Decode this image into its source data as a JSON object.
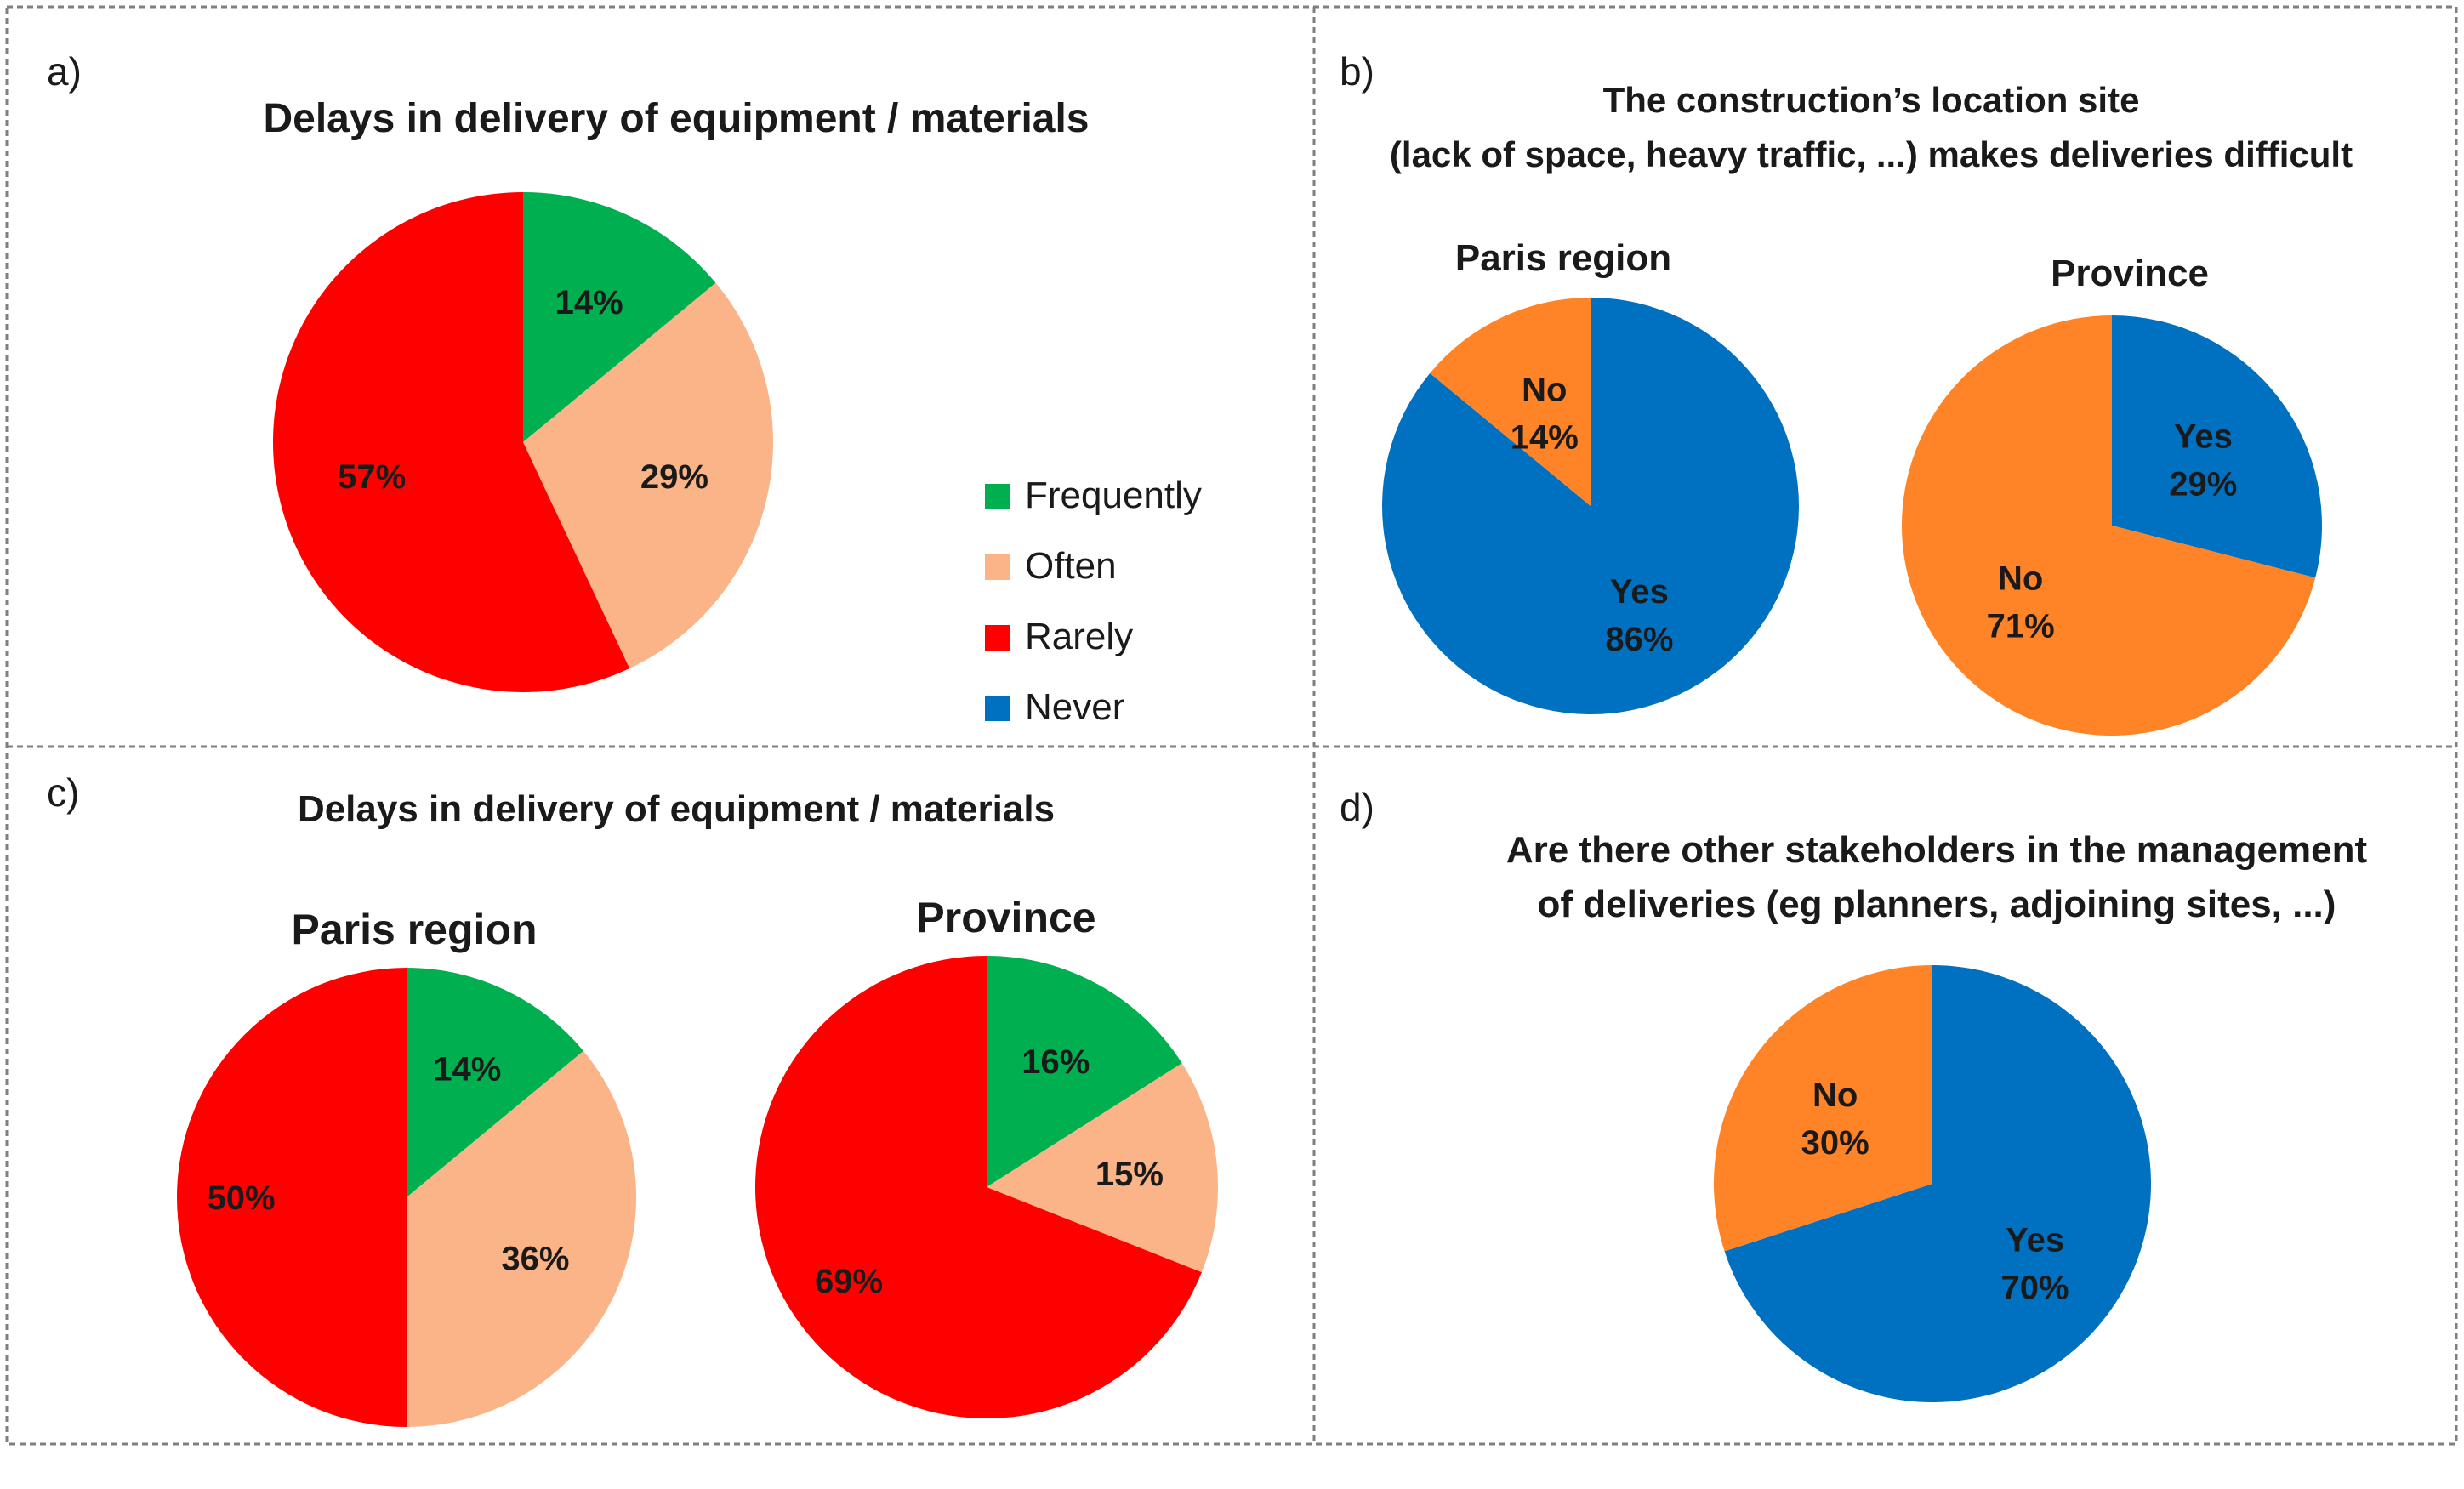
{
  "colors": {
    "frequently": "#00B050",
    "often": "#FAB488",
    "rarely": "#FF0000",
    "never": "#0070C0",
    "yes": "#0070C0",
    "no": "#FF8327"
  },
  "legend": [
    {
      "label": "Frequently",
      "color_key": "frequently"
    },
    {
      "label": "Often",
      "color_key": "often"
    },
    {
      "label": "Rarely",
      "color_key": "rarely"
    },
    {
      "label": "Never",
      "color_key": "never"
    }
  ],
  "panels": {
    "a": {
      "letter": "a)",
      "title": "Delays in delivery of equipment / materials"
    },
    "b": {
      "letter": "b)",
      "title_line1": "The construction’s location site",
      "title_line2": "(lack of space, heavy traffic, ...) makes deliveries difficult"
    },
    "c": {
      "letter": "c)",
      "title": "Delays in delivery of equipment / materials"
    },
    "d": {
      "letter": "d)",
      "title_line1": "Are there other stakeholders in the management",
      "title_line2": "of deliveries (eg planners, adjoining sites, ...)"
    }
  },
  "chart_data": [
    {
      "id": "a",
      "type": "pie",
      "panel": "a",
      "subtitle": "",
      "slices": [
        {
          "category": "Frequently",
          "label": "14%",
          "value": 14,
          "color_key": "frequently"
        },
        {
          "category": "Often",
          "label": "29%",
          "value": 29,
          "color_key": "often"
        },
        {
          "category": "Rarely",
          "label": "57%",
          "value": 57,
          "color_key": "rarely"
        }
      ]
    },
    {
      "id": "b_paris",
      "type": "pie",
      "panel": "b",
      "subtitle": "Paris region",
      "slices": [
        {
          "category": "Yes",
          "label": "86%",
          "value": 86,
          "color_key": "yes"
        },
        {
          "category": "No",
          "label": "14%",
          "value": 14,
          "color_key": "no"
        }
      ]
    },
    {
      "id": "b_province",
      "type": "pie",
      "panel": "b",
      "subtitle": "Province",
      "slices": [
        {
          "category": "Yes",
          "label": "29%",
          "value": 29,
          "color_key": "yes"
        },
        {
          "category": "No",
          "label": "71%",
          "value": 71,
          "color_key": "no"
        }
      ]
    },
    {
      "id": "c_paris",
      "type": "pie",
      "panel": "c",
      "subtitle": "Paris region",
      "slices": [
        {
          "category": "Frequently",
          "label": "14%",
          "value": 14,
          "color_key": "frequently"
        },
        {
          "category": "Often",
          "label": "36%",
          "value": 36,
          "color_key": "often"
        },
        {
          "category": "Rarely",
          "label": "50%",
          "value": 50,
          "color_key": "rarely"
        }
      ]
    },
    {
      "id": "c_province",
      "type": "pie",
      "panel": "c",
      "subtitle": "Province",
      "slices": [
        {
          "category": "Frequently",
          "label": "16%",
          "value": 16,
          "color_key": "frequently"
        },
        {
          "category": "Often",
          "label": "15%",
          "value": 15,
          "color_key": "often"
        },
        {
          "category": "Rarely",
          "label": "69%",
          "value": 69,
          "color_key": "rarely"
        }
      ]
    },
    {
      "id": "d",
      "type": "pie",
      "panel": "d",
      "subtitle": "",
      "slices": [
        {
          "category": "Yes",
          "label": "70%",
          "value": 70,
          "color_key": "yes"
        },
        {
          "category": "No",
          "label": "30%",
          "value": 30,
          "color_key": "no"
        }
      ]
    }
  ]
}
